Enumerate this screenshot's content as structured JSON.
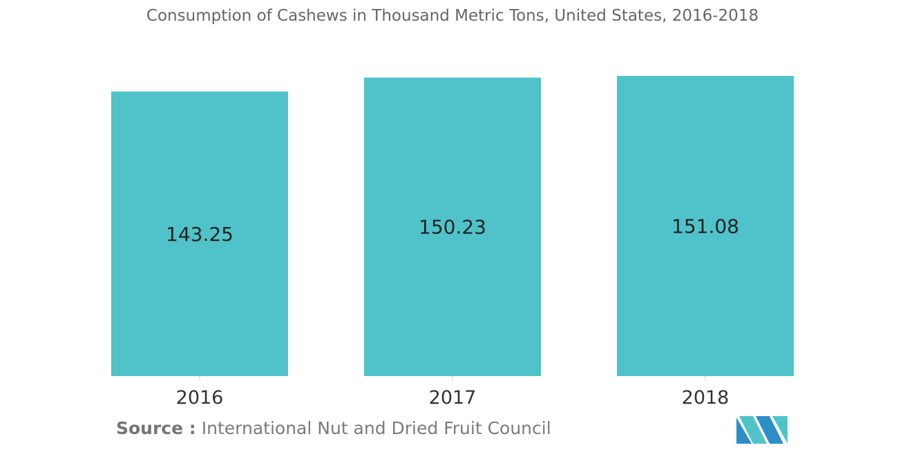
{
  "chart_data": {
    "type": "bar",
    "title": "Consumption of Cashews in Thousand Metric Tons, United States, 2016-2018",
    "categories": [
      "2016",
      "2017",
      "2018"
    ],
    "values": [
      143.25,
      150.23,
      151.08
    ],
    "value_labels": [
      "143.25",
      "150.23",
      "151.08"
    ],
    "xlabel": "",
    "ylabel": "",
    "grid": false,
    "legend": "none",
    "bar_color": "#50C3CA"
  },
  "footer": {
    "source_label": "Source :",
    "source_text": "International Nut and Dried Fruit Council"
  },
  "colors": {
    "title": "#666666",
    "axis": "#d0d0d0",
    "logo_primary": "#2E8FC6",
    "logo_secondary": "#50C3CA"
  },
  "logo": {
    "icon": "mordor-logo-icon"
  }
}
